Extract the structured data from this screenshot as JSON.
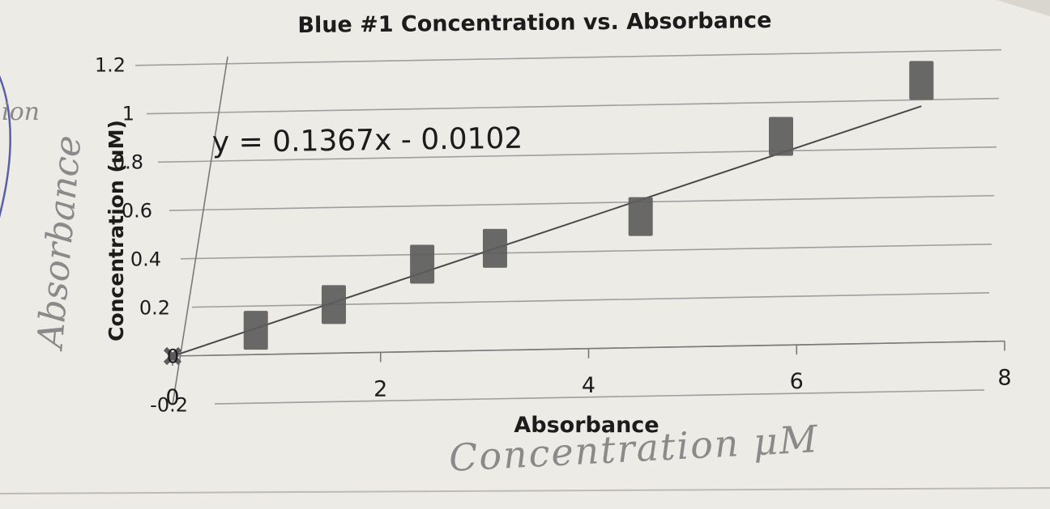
{
  "chart_data": {
    "type": "scatter",
    "title": "Blue #1 Concentration vs. Absorbance",
    "xlabel": "Absorbance",
    "ylabel": "Concentration (uM)",
    "xlim": [
      0,
      8
    ],
    "ylim": [
      -0.2,
      1.2
    ],
    "x_ticks": [
      "0",
      "2",
      "4",
      "6",
      "8"
    ],
    "y_ticks": [
      "-0.2",
      "0",
      "0.2",
      "0.4",
      "0.6",
      "0.8",
      "1",
      "1.2"
    ],
    "grid": true,
    "points": [
      {
        "x": 0.0,
        "y": 0.0
      },
      {
        "x": 0.8,
        "y": 0.1
      },
      {
        "x": 1.55,
        "y": 0.2
      },
      {
        "x": 2.4,
        "y": 0.36
      },
      {
        "x": 3.1,
        "y": 0.42
      },
      {
        "x": 4.5,
        "y": 0.54
      },
      {
        "x": 5.85,
        "y": 0.86
      },
      {
        "x": 7.2,
        "y": 1.08
      }
    ],
    "trendline": {
      "slope": 0.1367,
      "intercept": -0.0102,
      "equation": "y = 0.1367x - 0.0102"
    },
    "colors": {
      "marker": "#5c5c5c",
      "line": "#4a4a4a",
      "grid": "#9e9e9e",
      "paper": "#ecebe6"
    }
  },
  "handwriting": {
    "y_axis_note": "Absorbance",
    "x_axis_note": "Concentration μM",
    "margin_note": "ion",
    "color": "#8a8a8a"
  }
}
